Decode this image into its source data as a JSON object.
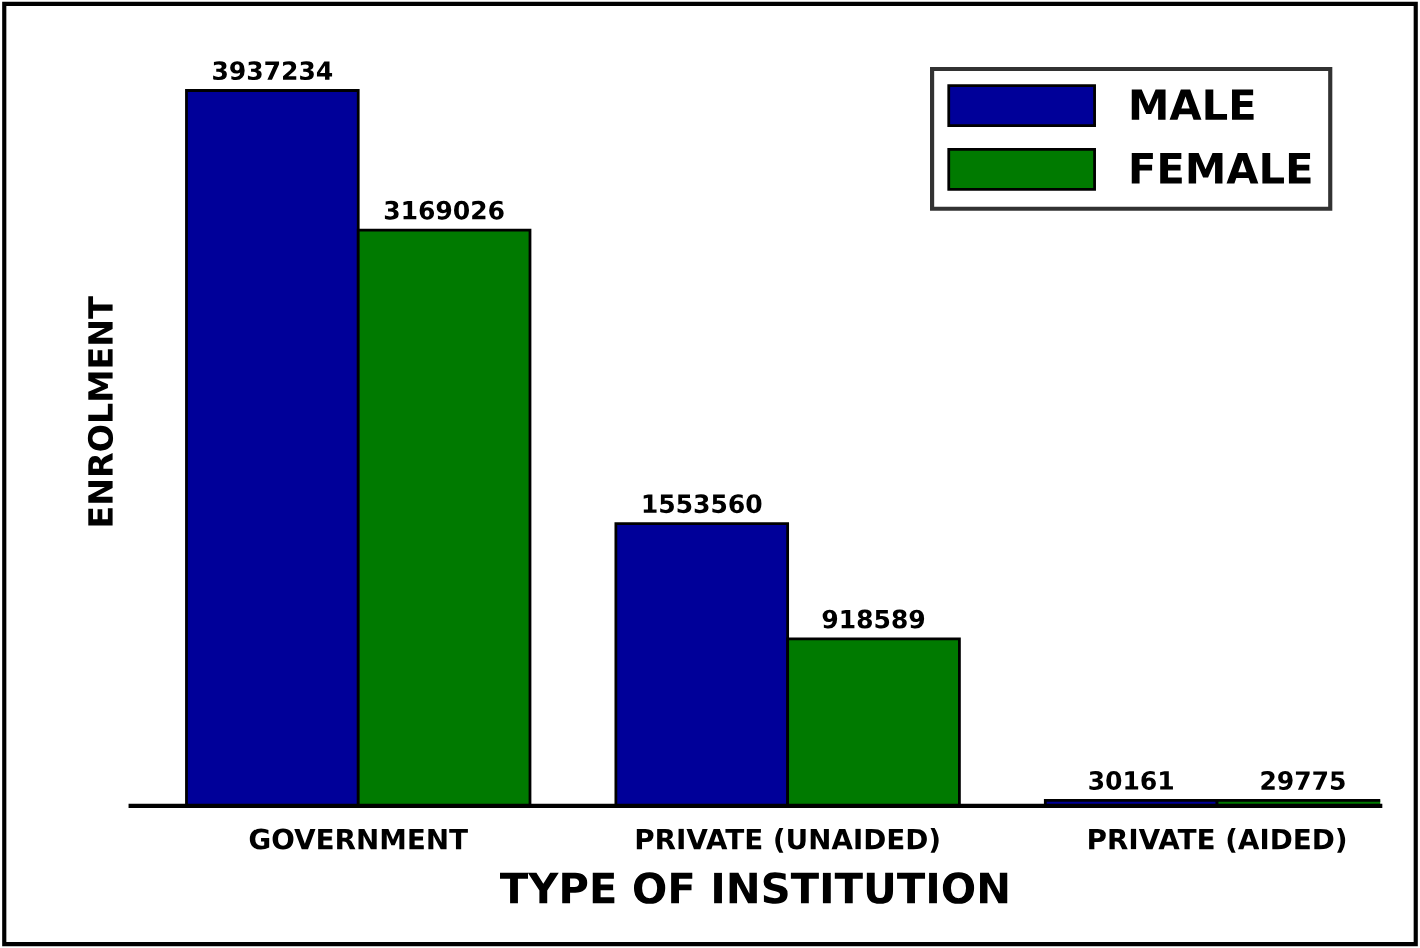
{
  "chart_data": {
    "type": "bar",
    "xlabel": "TYPE OF INSTITUTION",
    "ylabel": "ENROLMENT",
    "categories": [
      "GOVERNMENT",
      "PRIVATE (UNAIDED)",
      "PRIVATE (AIDED)"
    ],
    "series": [
      {
        "name": "MALE",
        "color": "#000099",
        "values": [
          3937234,
          1553560,
          30161
        ]
      },
      {
        "name": "FEMALE",
        "color": "#007a00",
        "values": [
          3169026,
          918589,
          29775
        ]
      }
    ],
    "data_labels": true,
    "legend": "top right",
    "grid": false,
    "tick_labels": "x"
  }
}
